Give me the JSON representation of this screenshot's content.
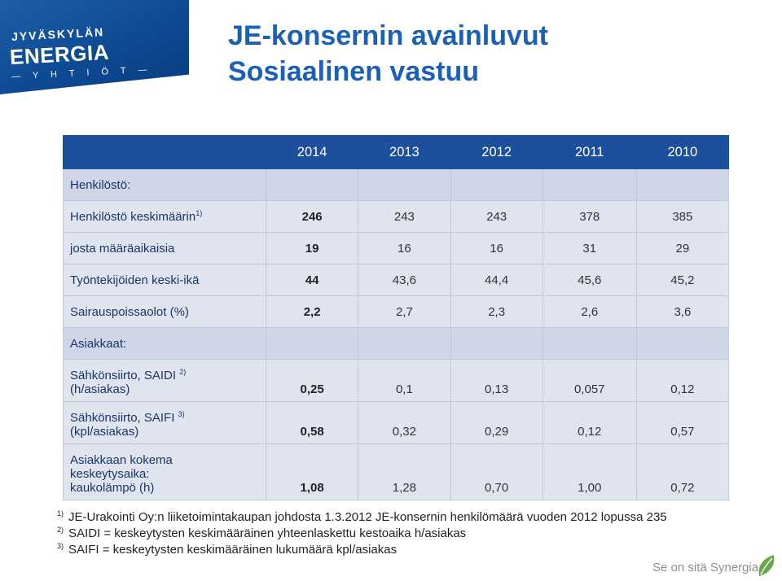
{
  "logo": {
    "line1": "JYVÄSKYLÄN",
    "line2": "ENERGIA",
    "line3": "— Y H T I Ö T —"
  },
  "title": {
    "line1": "JE-konsernin avainluvut",
    "line2": "Sosiaalinen vastuu"
  },
  "table": {
    "years": [
      "2014",
      "2013",
      "2012",
      "2011",
      "2010"
    ],
    "section_staff": "Henkilöstö:",
    "staff_rows": [
      {
        "label": "Henkilöstö keskimäärin",
        "sup": "1)",
        "values": [
          "246",
          "243",
          "243",
          "378",
          "385"
        ]
      },
      {
        "label": "josta määräaikaisia",
        "sup": "",
        "values": [
          "19",
          "16",
          "16",
          "31",
          "29"
        ]
      },
      {
        "label": "Työntekijöiden keski-ikä",
        "sup": "",
        "values": [
          "44",
          "43,6",
          "44,4",
          "45,6",
          "45,2"
        ]
      },
      {
        "label": "Sairauspoissaolot (%)",
        "sup": "",
        "values": [
          "2,2",
          "2,7",
          "2,3",
          "2,6",
          "3,6"
        ]
      }
    ],
    "section_customers": "Asiakkaat:",
    "customer_rows": [
      {
        "label_line1": "Sähkönsiirto, SAIDI",
        "sup": "2)",
        "label_line2": "(h/asiakas)",
        "values": [
          "0,25",
          "0,1",
          "0,13",
          "0,057",
          "0,12"
        ]
      },
      {
        "label_line1": "Sähkönsiirto, SAIFI",
        "sup": "3)",
        "label_line2": "(kpl/asiakas)",
        "values": [
          "0,58",
          "0,32",
          "0,29",
          "0,12",
          "0,57"
        ]
      },
      {
        "label_line1": "Asiakkaan kokema",
        "label_line2": "keskeytysaika:",
        "label_line3": "kaukolämpö (h)",
        "values": [
          "1,08",
          "1,28",
          "0,70",
          "1,00",
          "0,72"
        ]
      }
    ]
  },
  "footnotes": [
    {
      "mark": "1)",
      "text": "JE-Urakointi Oy:n liiketoimintakaupan johdosta 1.3.2012 JE-konsernin henkilömäärä vuoden 2012 lopussa 235"
    },
    {
      "mark": "2)",
      "text": "SAIDI = keskeytysten keskimääräinen yhteenlaskettu kestoaika h/asiakas"
    },
    {
      "mark": "3)",
      "text": "SAIFI = keskeytysten keskimääräinen lukumäärä kpl/asiakas"
    }
  ],
  "slogan": "Se on sitä Synergiaa.",
  "colors": {
    "title": "#1a5fb8",
    "header": "#1c4f9c",
    "row": "#dfe4ef",
    "section": "#cfd6e8"
  }
}
